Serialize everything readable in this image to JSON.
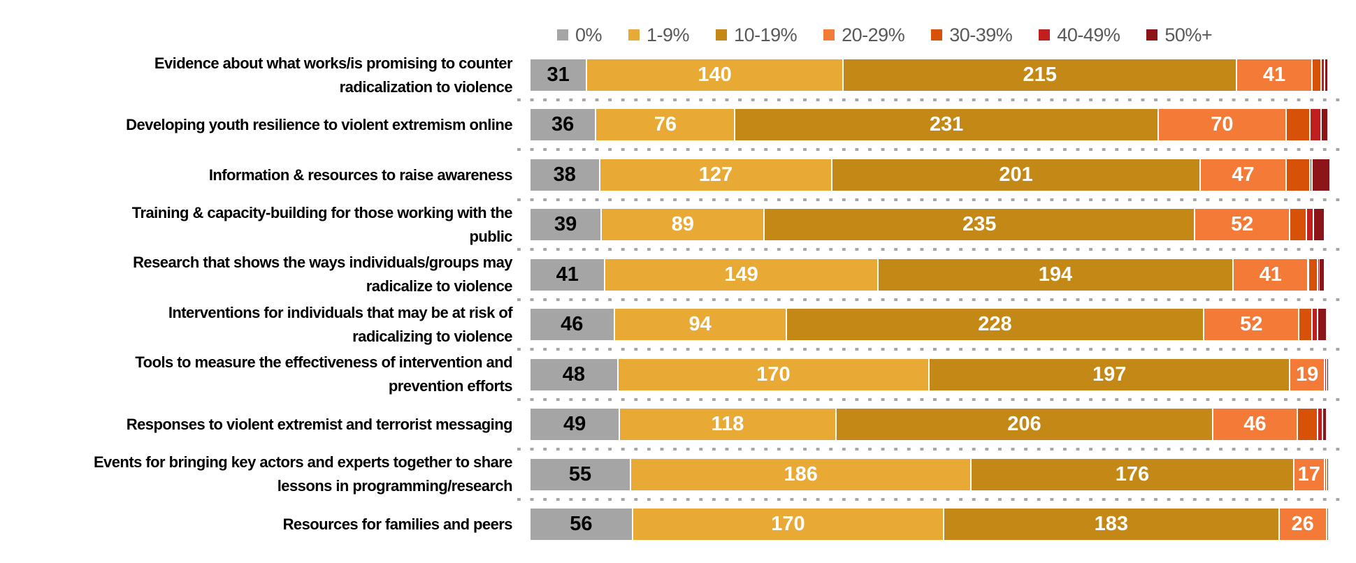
{
  "chart_data": {
    "type": "bar",
    "orientation": "horizontal",
    "stacked": true,
    "title": "",
    "xlabel": "",
    "ylabel": "",
    "legend_position": "top",
    "grid": false,
    "categories": [
      "Evidence about what works/is promising to counter radicalization to violence",
      "Developing youth resilience to violent extremism online",
      "Information & resources to raise awareness",
      "Training & capacity-building for those working with the public",
      "Research that shows the ways individuals/groups may radicalize to violence",
      "Interventions for individuals that may be at risk of radicalizing to violence",
      "Tools to measure the effectiveness of intervention and prevention efforts",
      "Responses to violent extremist and terrorist messaging",
      "Events for bringing key actors and experts together to share lessons in programming/research",
      "Resources for families and peers"
    ],
    "category_lines": [
      [
        "Evidence about what works/is promising to counter",
        "radicalization to violence"
      ],
      [
        "Developing youth resilience to violent extremism online"
      ],
      [
        "Information & resources to raise awareness"
      ],
      [
        "Training & capacity-building for those working with the",
        "public"
      ],
      [
        "Research that shows the ways individuals/groups may",
        "radicalize to violence"
      ],
      [
        "Interventions for individuals that may be at risk of",
        "radicalizing to violence"
      ],
      [
        "Tools to measure the effectiveness of intervention and",
        "prevention efforts"
      ],
      [
        "Responses to violent extremist and terrorist messaging"
      ],
      [
        "Events for bringing key actors and experts together to share",
        "lessons in programming/research"
      ],
      [
        "Resources for families and peers"
      ]
    ],
    "series": [
      {
        "name": "0%",
        "color": "#a5a5a5",
        "label_color": "#000000",
        "values": [
          31,
          36,
          38,
          39,
          41,
          46,
          48,
          49,
          55,
          56
        ]
      },
      {
        "name": "1-9%",
        "color": "#e9aa35",
        "label_color": "#ffffff",
        "values": [
          140,
          76,
          127,
          89,
          149,
          94,
          170,
          118,
          186,
          170
        ]
      },
      {
        "name": "10-19%",
        "color": "#c38815",
        "label_color": "#ffffff",
        "values": [
          215,
          231,
          201,
          235,
          194,
          228,
          197,
          206,
          176,
          183
        ]
      },
      {
        "name": "20-29%",
        "color": "#f47a38",
        "label_color": "#ffffff",
        "values": [
          41,
          70,
          47,
          52,
          41,
          52,
          19,
          46,
          17,
          26
        ]
      },
      {
        "name": "30-39%",
        "color": "#d75108",
        "label_color": "#ffffff",
        "values": [
          5,
          13,
          13,
          9,
          5,
          7,
          0,
          11,
          1,
          1
        ]
      },
      {
        "name": "40-49%",
        "color": "#c01f1f",
        "label_color": "#ffffff",
        "values": [
          2,
          6,
          1,
          4,
          1,
          3,
          1,
          3,
          1,
          0
        ]
      },
      {
        "name": "50%+",
        "color": "#8b1518",
        "label_color": "#ffffff",
        "values": [
          2,
          4,
          10,
          6,
          3,
          5,
          1,
          2,
          0,
          0
        ]
      }
    ],
    "labeled_series": [
      "0%",
      "1-9%",
      "10-19%",
      "20-29%"
    ]
  }
}
